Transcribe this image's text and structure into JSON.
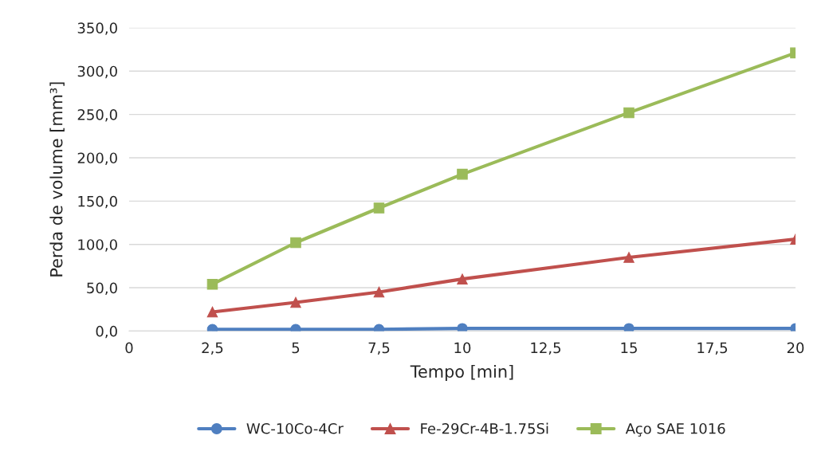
{
  "chart_data": {
    "type": "line",
    "xlabel": "Tempo [min]",
    "ylabel": "Perda de volume [mm³]",
    "series": [
      {
        "name": "WC-10Co-4Cr",
        "color": "#4f7fc0",
        "marker": "circle",
        "x": [
          2.5,
          5,
          7.5,
          10,
          15,
          20
        ],
        "values": [
          2,
          2,
          2,
          3,
          3,
          3
        ]
      },
      {
        "name": "Fe-29Cr-4B-1.75Si",
        "color": "#c0504d",
        "marker": "triangle",
        "x": [
          2.5,
          5,
          7.5,
          10,
          15,
          20
        ],
        "values": [
          22,
          33,
          45,
          60,
          85,
          106
        ]
      },
      {
        "name": "Aço SAE 1016",
        "color": "#9bbb59",
        "marker": "square",
        "x": [
          2.5,
          5,
          7.5,
          10,
          15,
          20
        ],
        "values": [
          54,
          102,
          142,
          181,
          252,
          321
        ]
      }
    ],
    "xlim": [
      0,
      20
    ],
    "xticks": [
      0,
      {
        "value": 2.5,
        "label": "2,5"
      },
      5,
      {
        "value": 7.5,
        "label": "7,5"
      },
      10,
      {
        "value": 12.5,
        "label": "12,5"
      },
      15,
      {
        "value": 17.5,
        "label": "17,5"
      },
      20
    ],
    "ylim": [
      0,
      350
    ],
    "yticks": [
      {
        "value": 0,
        "label": "0,0"
      },
      {
        "value": 50,
        "label": "50,0"
      },
      {
        "value": 100,
        "label": "100,0"
      },
      {
        "value": 150,
        "label": "150,0"
      },
      {
        "value": 200,
        "label": "200,0"
      },
      {
        "value": 250,
        "label": "250,0"
      },
      {
        "value": 300,
        "label": "300,0"
      },
      {
        "value": 350,
        "label": "350,0"
      }
    ],
    "grid": "y",
    "legend": "bottom",
    "line_style": "solid"
  }
}
